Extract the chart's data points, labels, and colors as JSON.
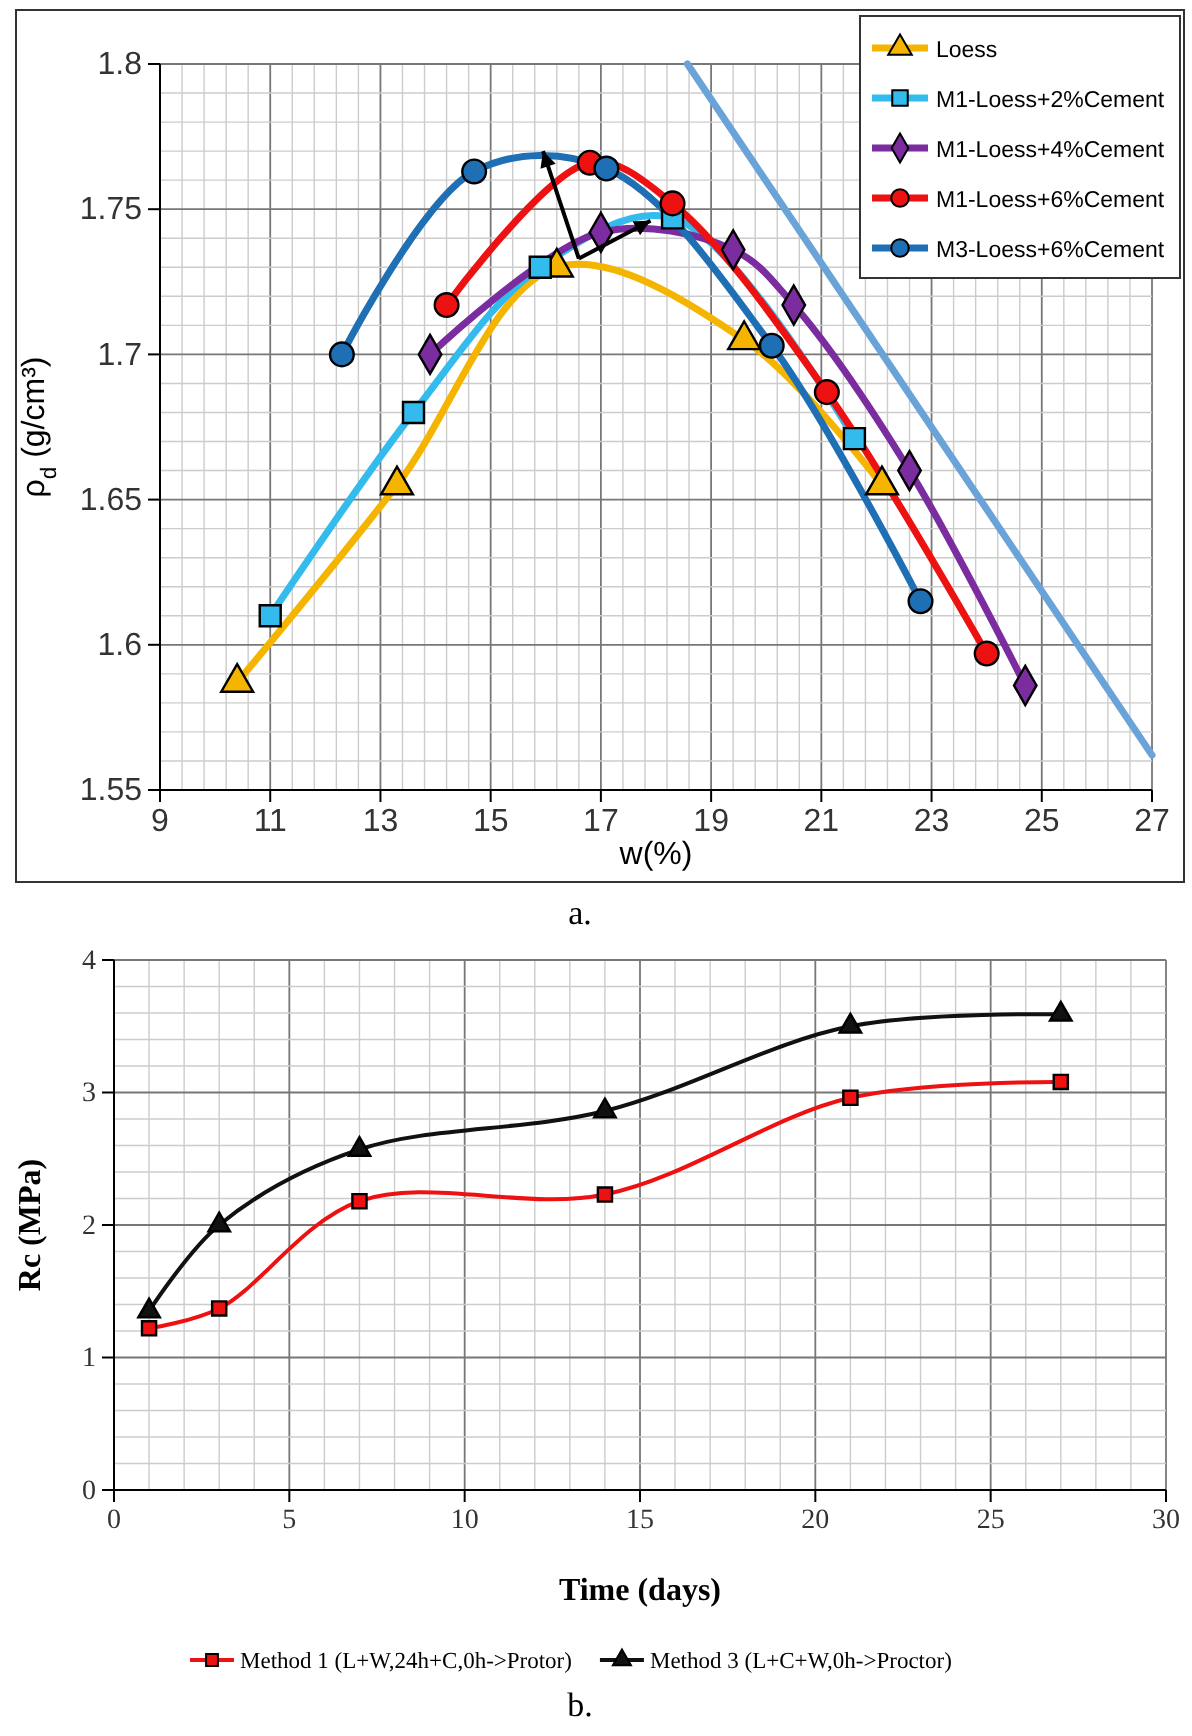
{
  "chart_data": [
    {
      "type": "line",
      "xlabel": "w(%)",
      "ylabel": "ρ$_{d}$ (g/cm³)",
      "annotations": [
        "a."
      ],
      "xlim": [
        9,
        27
      ],
      "xticks": [
        9,
        11,
        13,
        15,
        17,
        19,
        21,
        23,
        25,
        27
      ],
      "ylim": [
        1.55,
        1.8
      ],
      "yticks": [
        1.55,
        1.6,
        1.65,
        1.7,
        1.75,
        1.8
      ],
      "grid": true,
      "legend": "top right",
      "series": [
        {
          "name": "Loess",
          "color": "#f5b400",
          "marker": "triangle",
          "x": [
            10.4,
            13.3,
            16.2,
            19.6,
            22.1
          ],
          "values": [
            1.587,
            1.655,
            1.73,
            1.705,
            1.655
          ]
        },
        {
          "name": "M1-Loess+2%Cement",
          "color": "#33bbee",
          "marker": "square",
          "x": [
            11.0,
            13.6,
            15.9,
            18.3,
            21.6
          ],
          "values": [
            1.61,
            1.68,
            1.73,
            1.747,
            1.671
          ]
        },
        {
          "name": "M1-Loess+4%Cement",
          "color": "#7b2c9e",
          "marker": "diamond",
          "x": [
            13.9,
            17.0,
            19.4,
            20.5,
            22.6,
            24.7
          ],
          "values": [
            1.7,
            1.742,
            1.736,
            1.717,
            1.66,
            1.586
          ]
        },
        {
          "name": "M1-Loess+6%Cement",
          "color": "#ee1111",
          "marker": "circle",
          "x": [
            14.2,
            16.8,
            18.3,
            21.1,
            24.0
          ],
          "values": [
            1.717,
            1.766,
            1.752,
            1.687,
            1.597
          ]
        },
        {
          "name": "M3-Loess+6%Cement",
          "color": "#1f6fb5",
          "marker": "circle",
          "x": [
            12.3,
            14.7,
            17.1,
            20.1,
            22.8
          ],
          "values": [
            1.7,
            1.763,
            1.764,
            1.703,
            1.615
          ]
        },
        {
          "color": "#6aa3d8",
          "marker": "none",
          "x": [
            18.57,
            27
          ],
          "values": [
            1.8,
            1.562
          ]
        }
      ]
    },
    {
      "type": "line",
      "xlabel": "Time (days)",
      "ylabel": "Rc (MPa)",
      "annotations": [
        "b."
      ],
      "xlim": [
        0,
        30
      ],
      "xticks": [
        0,
        5,
        10,
        15,
        20,
        25,
        30
      ],
      "ylim": [
        0,
        4
      ],
      "yticks": [
        0,
        1,
        2,
        3,
        4
      ],
      "grid": true,
      "legend": "bottom",
      "series": [
        {
          "name": "Method 1 (L+W,24h+C,0h->Protor)",
          "color": "#ee1111",
          "marker": "square",
          "x": [
            1,
            3,
            7,
            14,
            21,
            27
          ],
          "values": [
            1.22,
            1.37,
            2.18,
            2.23,
            2.96,
            3.08
          ]
        },
        {
          "name": "Method 3 (L+C+W,0h->Proctor)",
          "color": "#111111",
          "marker": "triangle",
          "x": [
            1,
            3,
            7,
            14,
            21,
            27
          ],
          "values": [
            1.35,
            2.0,
            2.57,
            2.86,
            3.5,
            3.59
          ]
        }
      ]
    }
  ]
}
